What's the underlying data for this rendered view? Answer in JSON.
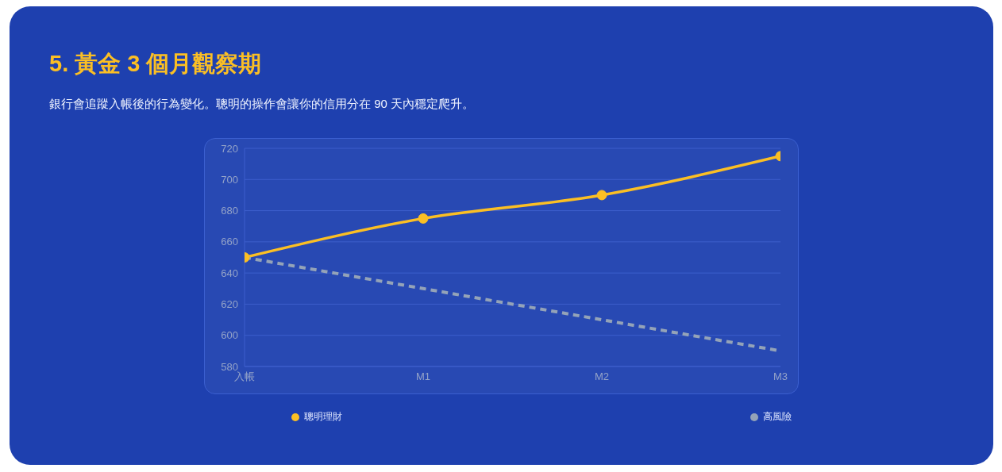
{
  "chart_data": {
    "type": "line",
    "title": "5. 黃金 3 個月觀察期",
    "subtitle": "銀行會追蹤入帳後的行為變化。聰明的操作會讓你的信用分在 90 天內穩定爬升。",
    "categories": [
      "入帳",
      "M1",
      "M2",
      "M3"
    ],
    "series": [
      {
        "name": "聰明理財",
        "color": "#fbbf24",
        "values": [
          650,
          675,
          690,
          715
        ],
        "marker": "circle",
        "line_style": "solid"
      },
      {
        "name": "高風險",
        "color": "#94a3b8",
        "values": [
          650,
          630,
          610,
          590
        ],
        "marker": "none",
        "line_style": "dashed"
      }
    ],
    "ylim": [
      580,
      720
    ],
    "yticks": [
      580,
      600,
      620,
      640,
      660,
      680,
      700,
      720
    ],
    "grid": "y",
    "legend": "bottom"
  }
}
